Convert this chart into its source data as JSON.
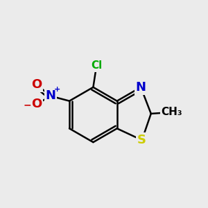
{
  "bg_color": "#ebebeb",
  "bond_color": "#000000",
  "bond_width": 1.8,
  "atom_colors": {
    "S": "#cccc00",
    "N": "#0000cc",
    "O": "#cc0000",
    "Cl": "#00aa00",
    "C": "#000000"
  },
  "font_sizes": {
    "S": 13,
    "N": 13,
    "O": 13,
    "Cl": 11,
    "CH3": 11,
    "plus": 8,
    "minus": 10
  }
}
